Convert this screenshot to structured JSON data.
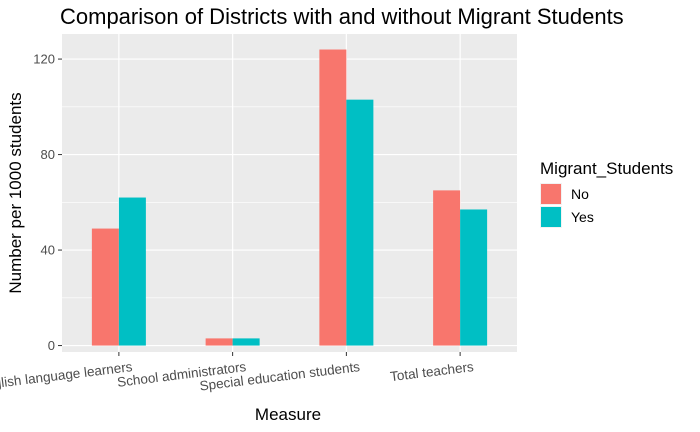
{
  "chart_data": {
    "type": "bar",
    "title": "Comparison of Districts with and without Migrant Students",
    "xlabel": "Measure",
    "ylabel": "Number per 1000 students",
    "categories": [
      "English language learners",
      "School administrators",
      "Special education students",
      "Total teachers"
    ],
    "series": [
      {
        "name": "No",
        "values": [
          49,
          3,
          124,
          65
        ],
        "color": "#F8766D"
      },
      {
        "name": "Yes",
        "values": [
          62,
          3,
          103,
          57
        ],
        "color": "#00BFC4"
      }
    ],
    "ylim": [
      0,
      130
    ],
    "yticks": [
      0,
      40,
      80,
      120
    ],
    "grid": true,
    "legend": {
      "title": "Migrant_Students",
      "placement": "right"
    },
    "panel_background": "#EBEBEB",
    "grid_color": "#FFFFFF"
  }
}
